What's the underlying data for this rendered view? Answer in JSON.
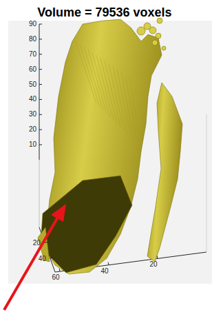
{
  "chart_data": {
    "type": "isosurface",
    "title": "Volume = 79536 voxels",
    "color": "#d8cd48",
    "xlim": [
      0,
      58
    ],
    "xticks": [
      20,
      40
    ],
    "ylim": [
      0,
      62
    ],
    "yticks": [
      20,
      40,
      60
    ],
    "zlim": [
      0,
      90
    ],
    "zticks": [
      10,
      20,
      30,
      40,
      50,
      60,
      70,
      80,
      90
    ],
    "grid": false
  }
}
